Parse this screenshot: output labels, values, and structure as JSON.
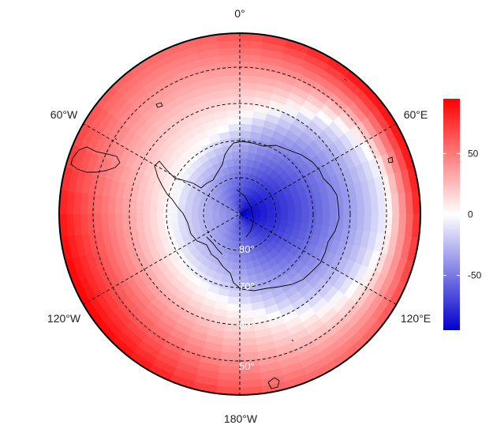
{
  "map": {
    "projection": "south-polar-stereographic",
    "field_colors": {
      "low": "#0000cc",
      "mid": "#ffffff",
      "high": "#ff0000"
    },
    "longitude_labels": [
      "0°",
      "60°E",
      "120°E",
      "180°W",
      "120°W",
      "60°W"
    ],
    "latitude_labels": [
      "80°",
      "70°",
      "60°",
      "50°"
    ]
  },
  "colorbar": {
    "min": -95,
    "max": 95,
    "ticks": [
      {
        "value": 50,
        "label": "50"
      },
      {
        "value": 0,
        "label": "0"
      },
      {
        "value": -50,
        "label": "-50"
      }
    ]
  }
}
